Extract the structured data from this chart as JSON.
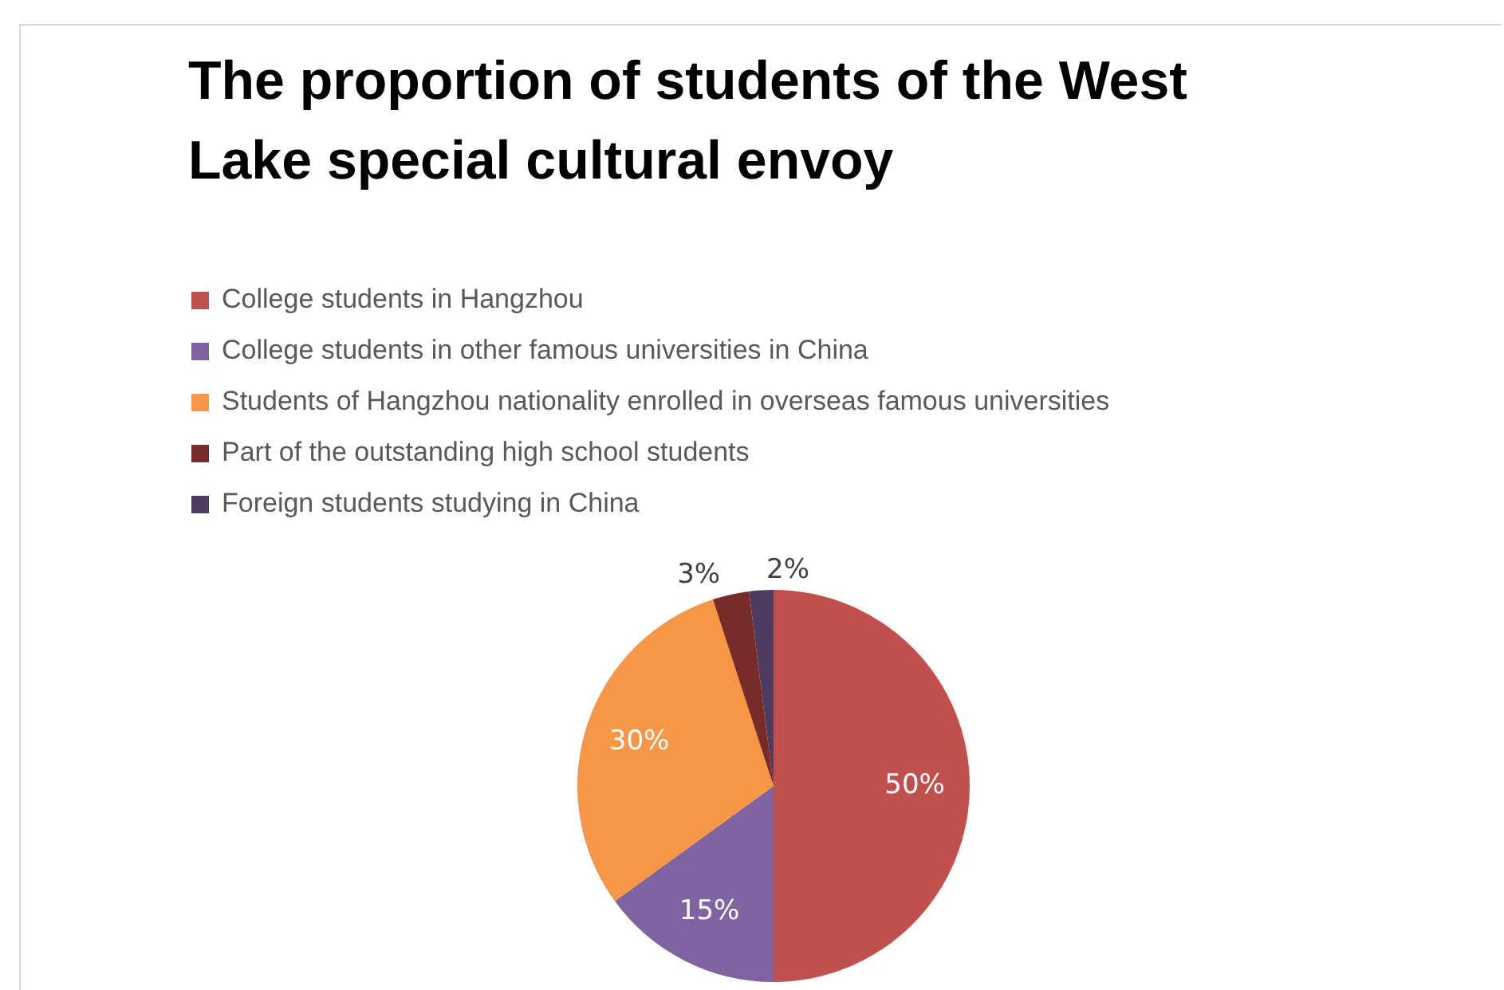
{
  "chart_data": {
    "type": "pie",
    "title": "The proportion of students of the West Lake special cultural envoy",
    "categories": [
      "College students in Hangzhou",
      "College students in other famous universities in China",
      "Students of Hangzhou nationality enrolled in overseas famous universities",
      "Part of the outstanding high school students",
      "Foreign students studying in China"
    ],
    "values": [
      50,
      15,
      30,
      3,
      2
    ],
    "colors": [
      "#c0504d",
      "#8064a2",
      "#f79646",
      "#772c2a",
      "#4d3b62"
    ],
    "value_labels": [
      "50%",
      "15%",
      "30%",
      "3%",
      "2%"
    ],
    "legend": "top"
  }
}
